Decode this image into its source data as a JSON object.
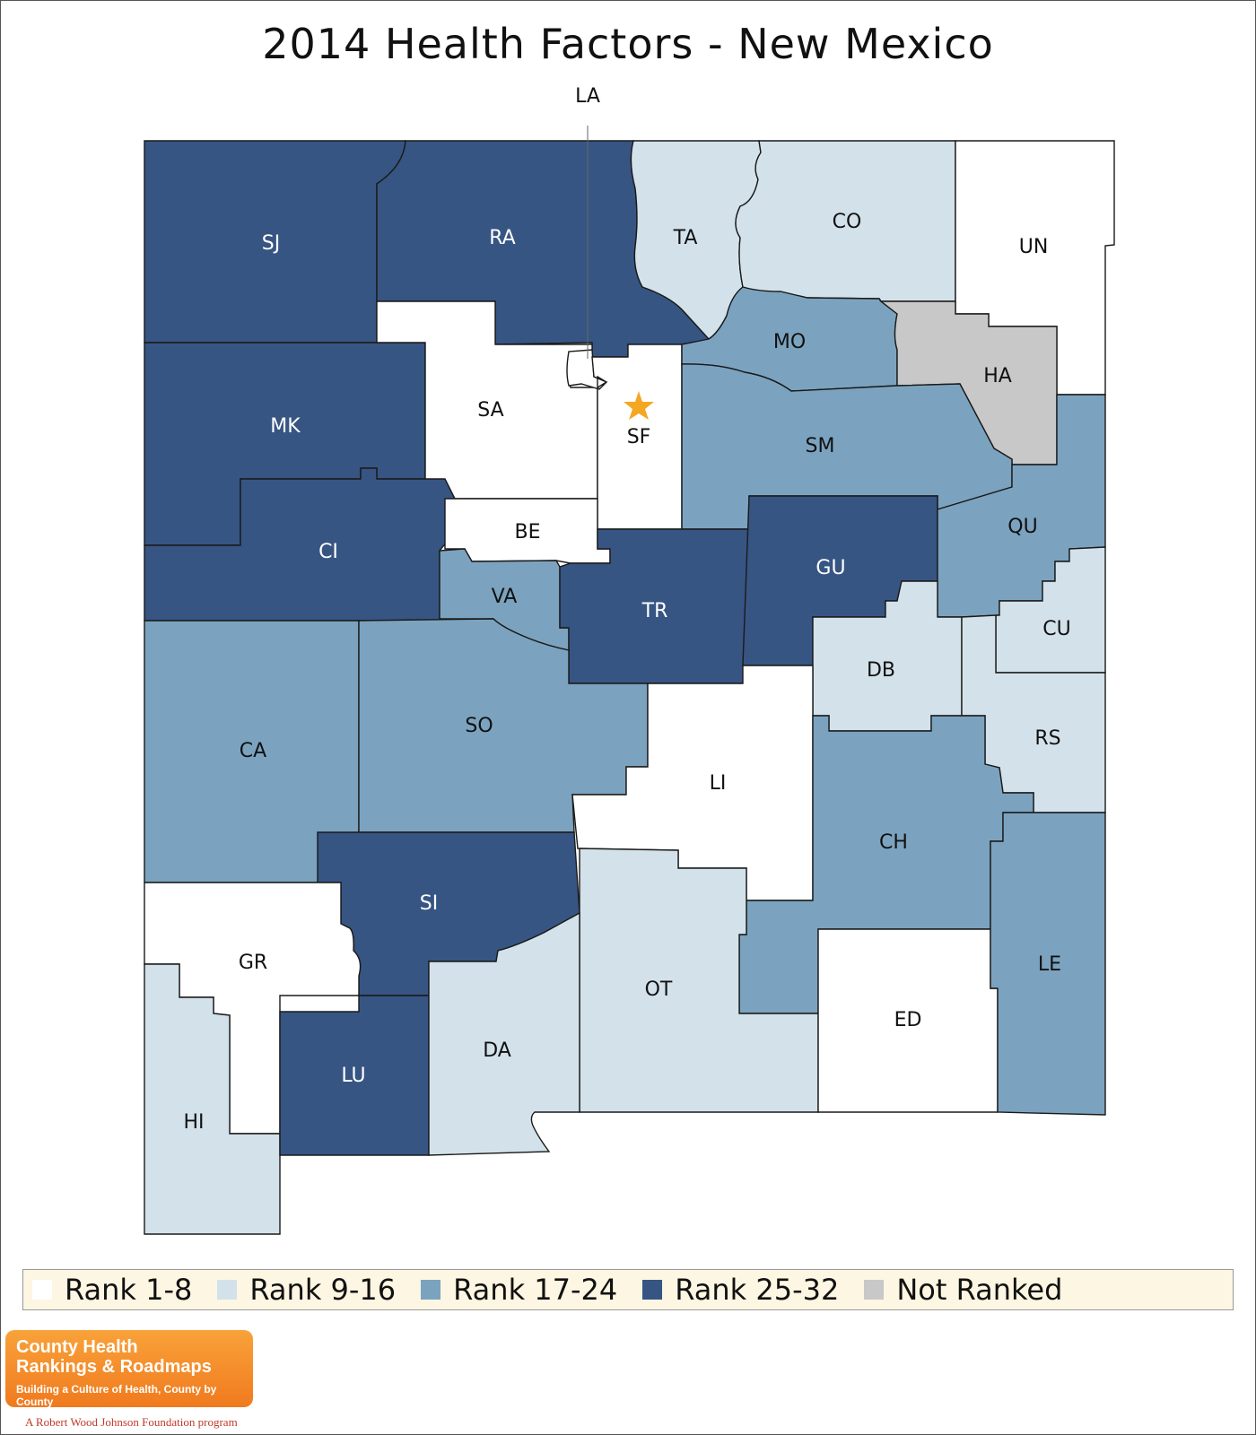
{
  "title": "2014 Health Factors - New Mexico",
  "colors": {
    "rank_1_8": "#ffffff",
    "rank_9_16": "#d3e2ea",
    "rank_17_24": "#7ba3bf",
    "rank_25_32": "#365583",
    "not_ranked": "#c8c8c8",
    "star": "#f5a623"
  },
  "legend": [
    {
      "label": "Rank 1-8",
      "key": "rank_1_8"
    },
    {
      "label": "Rank 9-16",
      "key": "rank_9_16"
    },
    {
      "label": "Rank 17-24",
      "key": "rank_17_24"
    },
    {
      "label": "Rank 25-32",
      "key": "rank_25_32"
    },
    {
      "label": "Not Ranked",
      "key": "not_ranked"
    }
  ],
  "counties": [
    {
      "abbr": "SJ",
      "rank": "rank_25_32"
    },
    {
      "abbr": "RA",
      "rank": "rank_25_32"
    },
    {
      "abbr": "TA",
      "rank": "rank_9_16"
    },
    {
      "abbr": "CO",
      "rank": "rank_9_16"
    },
    {
      "abbr": "UN",
      "rank": "rank_1_8"
    },
    {
      "abbr": "MK",
      "rank": "rank_25_32"
    },
    {
      "abbr": "SA",
      "rank": "rank_1_8"
    },
    {
      "abbr": "LA",
      "rank": "rank_1_8"
    },
    {
      "abbr": "SF",
      "rank": "rank_1_8"
    },
    {
      "abbr": "MO",
      "rank": "rank_17_24"
    },
    {
      "abbr": "HA",
      "rank": "not_ranked"
    },
    {
      "abbr": "SM",
      "rank": "rank_17_24"
    },
    {
      "abbr": "CI",
      "rank": "rank_25_32"
    },
    {
      "abbr": "BE",
      "rank": "rank_1_8"
    },
    {
      "abbr": "VA",
      "rank": "rank_17_24"
    },
    {
      "abbr": "TR",
      "rank": "rank_25_32"
    },
    {
      "abbr": "GU",
      "rank": "rank_25_32"
    },
    {
      "abbr": "QU",
      "rank": "rank_17_24"
    },
    {
      "abbr": "CU",
      "rank": "rank_9_16"
    },
    {
      "abbr": "DB",
      "rank": "rank_9_16"
    },
    {
      "abbr": "RS",
      "rank": "rank_9_16"
    },
    {
      "abbr": "CA",
      "rank": "rank_17_24"
    },
    {
      "abbr": "SO",
      "rank": "rank_17_24"
    },
    {
      "abbr": "LI",
      "rank": "rank_1_8"
    },
    {
      "abbr": "CH",
      "rank": "rank_17_24"
    },
    {
      "abbr": "SI",
      "rank": "rank_25_32"
    },
    {
      "abbr": "GR",
      "rank": "rank_1_8"
    },
    {
      "abbr": "LE",
      "rank": "rank_17_24"
    },
    {
      "abbr": "OT",
      "rank": "rank_9_16"
    },
    {
      "abbr": "ED",
      "rank": "rank_1_8"
    },
    {
      "abbr": "HI",
      "rank": "rank_9_16"
    },
    {
      "abbr": "LU",
      "rank": "rank_25_32"
    },
    {
      "abbr": "DA",
      "rank": "rank_9_16"
    }
  ],
  "capital_marker": "star-icon",
  "logo": {
    "line1": "County Health",
    "line2": "Rankings & Roadmaps",
    "tagline": "Building a Culture of Health, County by County",
    "foundation": "A Robert Wood Johnson Foundation program"
  }
}
